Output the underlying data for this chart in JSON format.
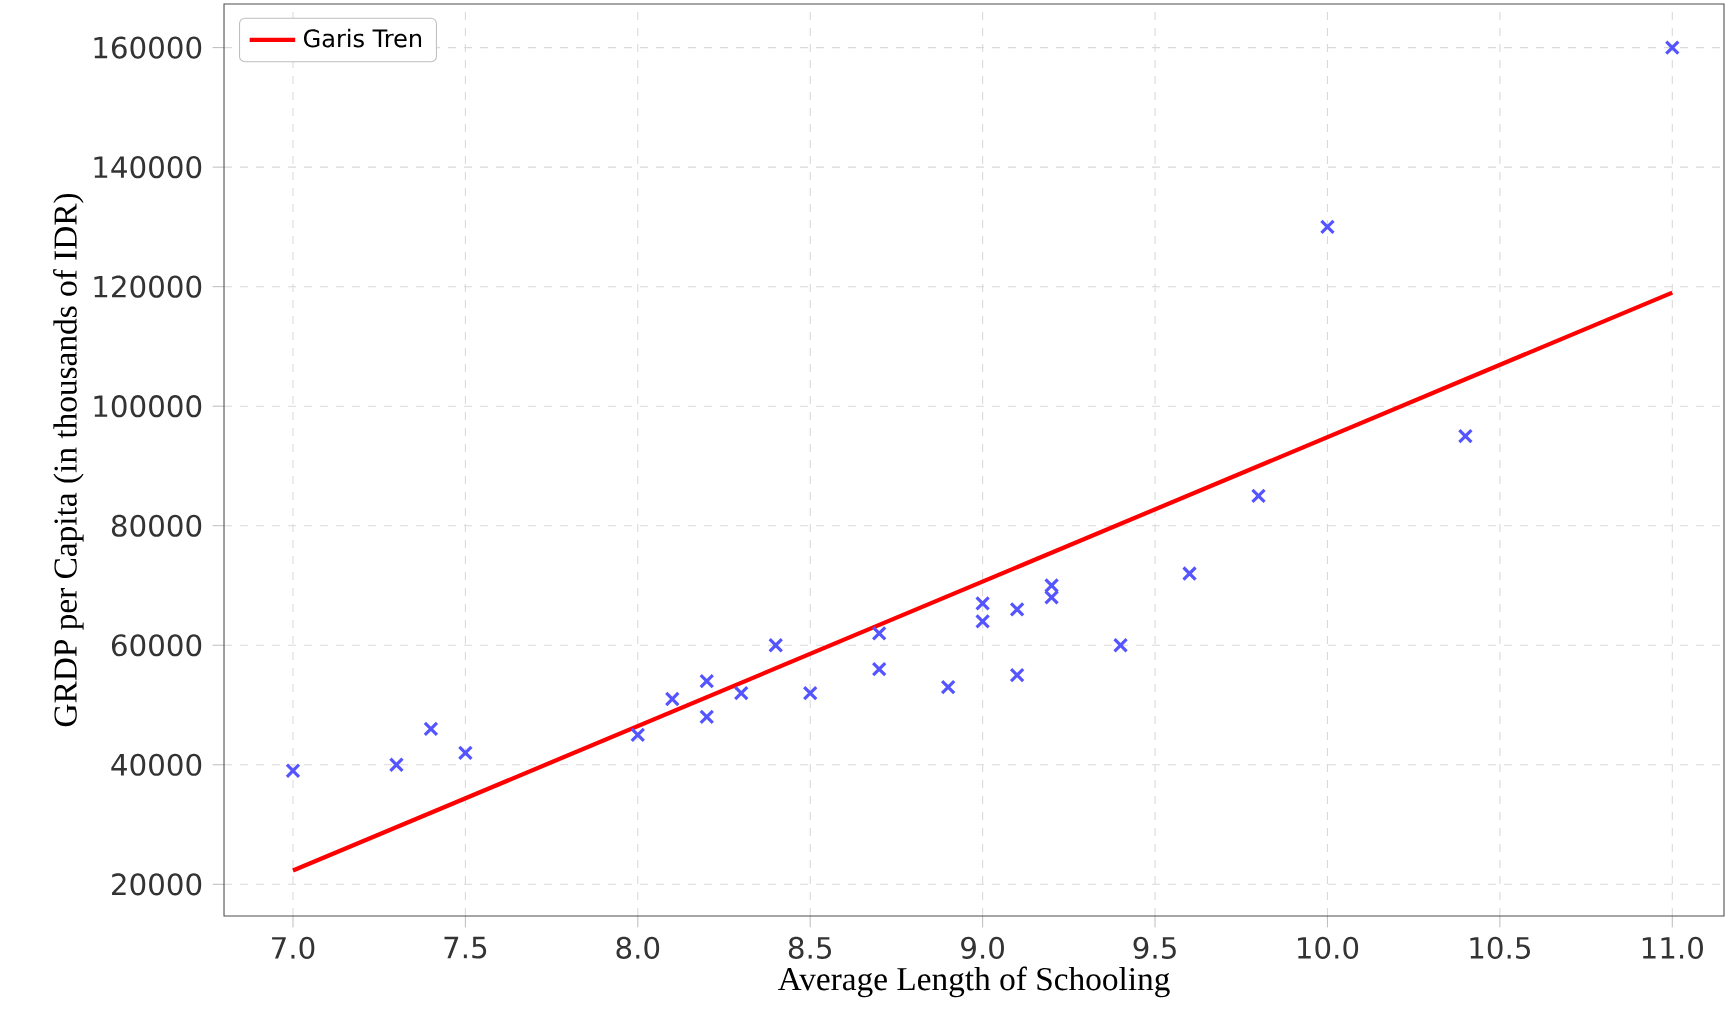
{
  "chart_data": {
    "type": "scatter",
    "xlabel": "Average Length of Schooling",
    "ylabel": "GRDP per Capita  (in thousands of IDR)",
    "xlim": [
      6.8,
      11.15
    ],
    "ylim": [
      14700,
      167300
    ],
    "xticks": [
      {
        "value": 7,
        "label": "7.0"
      },
      7.5,
      {
        "value": 8,
        "label": "8.0"
      },
      8.5,
      {
        "value": 9,
        "label": "9.0"
      },
      9.5,
      {
        "value": 10,
        "label": "10.0"
      },
      10.5,
      {
        "value": 11,
        "label": "11.0"
      }
    ],
    "yticks": [
      20000,
      40000,
      60000,
      80000,
      100000,
      120000,
      140000,
      160000
    ],
    "grid": true,
    "legend": "top left",
    "series": [
      {
        "color": "#5555ff",
        "marker": "cross",
        "x": [
          7.0,
          7.3,
          7.4,
          7.5,
          8.0,
          8.1,
          8.2,
          8.2,
          8.3,
          8.4,
          8.5,
          8.7,
          8.7,
          8.9,
          9.0,
          9.0,
          9.1,
          9.1,
          9.2,
          9.2,
          9.4,
          9.6,
          9.8,
          10.0,
          10.4,
          11.0
        ],
        "values": [
          39000,
          40000,
          46000,
          42000,
          45000,
          51000,
          54000,
          48000,
          52000,
          60000,
          52000,
          62000,
          56000,
          53000,
          67000,
          64000,
          66000,
          55000,
          70000,
          68000,
          60000,
          72000,
          85000,
          130000,
          95000,
          160000
        ]
      },
      {
        "type": "line",
        "name": "Garis Tren",
        "color": "#ff0000",
        "marker": "none",
        "line_style": "solid",
        "x": [
          7.0,
          11.0
        ],
        "values": [
          22300,
          119000
        ]
      }
    ]
  }
}
